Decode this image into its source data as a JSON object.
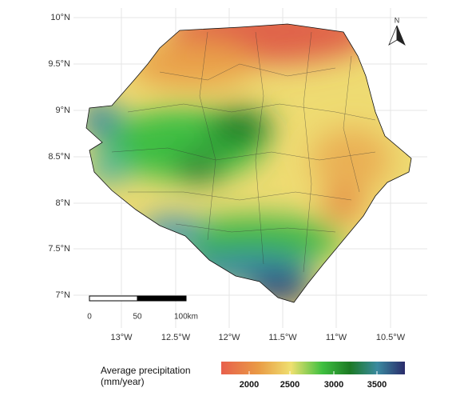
{
  "map": {
    "y_axis_labels": [
      "10°N",
      "9.5°N",
      "9°N",
      "8.5°N",
      "8°N",
      "7.5°N",
      "7°N"
    ],
    "x_axis_labels": [
      "13°W",
      "12.5°W",
      "12°W",
      "11.5°W",
      "11°W",
      "10.5°W"
    ],
    "north_label": "N",
    "scale_bar": {
      "labels": [
        "0",
        "50",
        "100km"
      ]
    },
    "legend": {
      "title_lines": [
        "Average precipitation",
        "(mm/year)"
      ],
      "ticks": [
        2000,
        2500,
        3000,
        3500
      ]
    }
  }
}
